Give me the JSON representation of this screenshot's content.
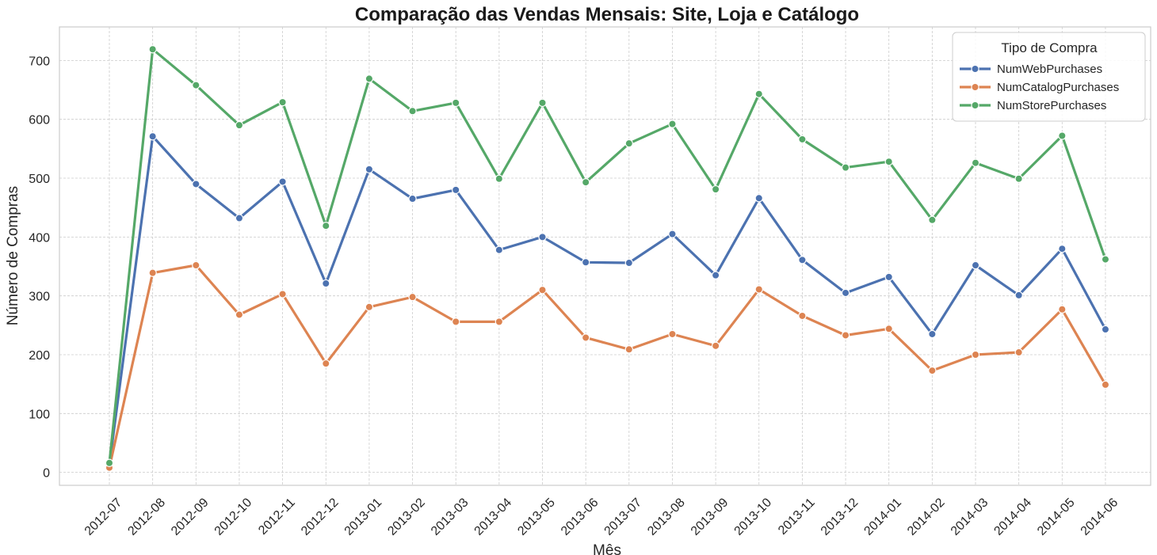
{
  "chart_data": {
    "type": "line",
    "title": "Comparação das Vendas Mensais: Site, Loja e Catálogo",
    "xlabel": "Mês",
    "ylabel": "Número de Compras",
    "x": [
      "2012-07",
      "2012-08",
      "2012-09",
      "2012-10",
      "2012-11",
      "2012-12",
      "2013-01",
      "2013-02",
      "2013-03",
      "2013-04",
      "2013-05",
      "2013-06",
      "2013-07",
      "2013-08",
      "2013-09",
      "2013-10",
      "2013-11",
      "2013-12",
      "2014-01",
      "2014-02",
      "2014-03",
      "2014-04",
      "2014-05",
      "2014-06"
    ],
    "yticks": [
      0,
      100,
      200,
      300,
      400,
      500,
      600,
      700
    ],
    "ylim": [
      -22,
      757
    ],
    "grid": true,
    "legend": {
      "title": "Tipo de Compra",
      "position": "top-right"
    },
    "series": [
      {
        "name": "NumWebPurchases",
        "color": "#4c72b0",
        "values": [
          13,
          571,
          490,
          432,
          494,
          321,
          515,
          465,
          480,
          378,
          400,
          357,
          356,
          405,
          335,
          466,
          361,
          305,
          332,
          235,
          352,
          301,
          380,
          243
        ]
      },
      {
        "name": "NumCatalogPurchases",
        "color": "#dd8452",
        "values": [
          8,
          339,
          352,
          268,
          303,
          185,
          281,
          298,
          256,
          256,
          310,
          229,
          209,
          235,
          215,
          311,
          266,
          233,
          244,
          173,
          200,
          204,
          277,
          149
        ]
      },
      {
        "name": "NumStorePurchases",
        "color": "#55a868",
        "values": [
          16,
          719,
          658,
          590,
          629,
          419,
          669,
          614,
          628,
          499,
          628,
          493,
          559,
          592,
          481,
          643,
          566,
          518,
          528,
          429,
          526,
          499,
          572,
          362
        ]
      }
    ]
  }
}
